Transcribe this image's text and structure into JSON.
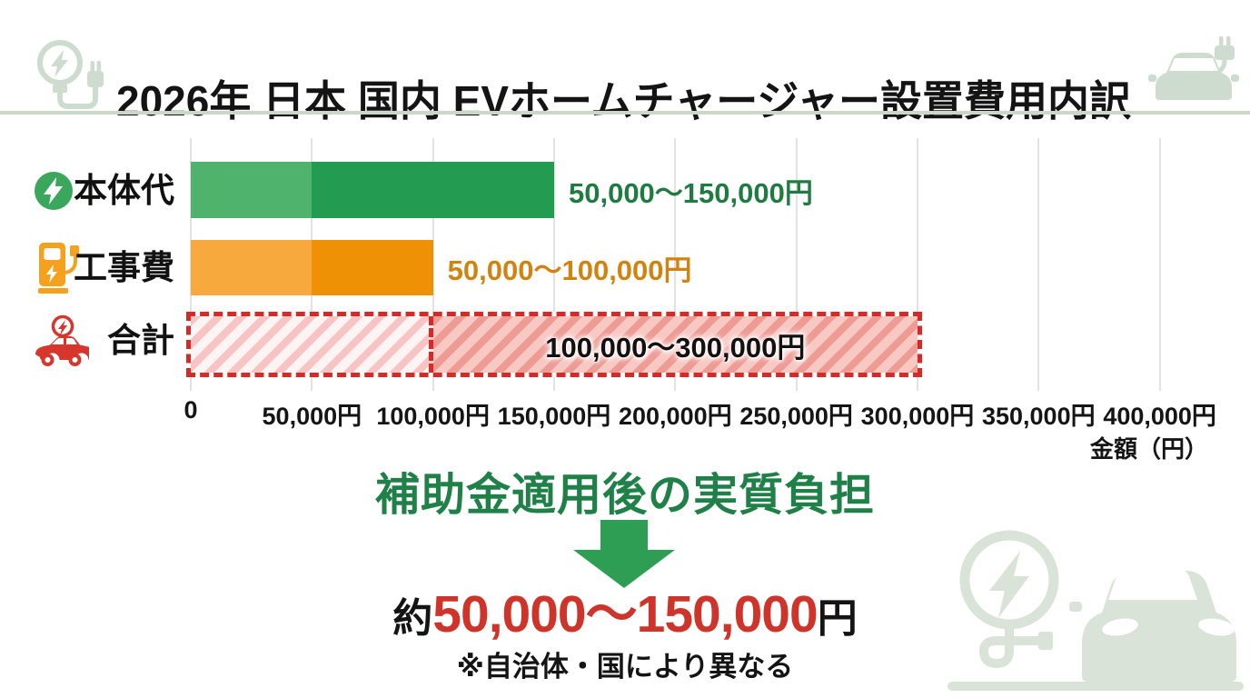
{
  "header": {
    "title": "2026年 日本 国内 EVホームチャージャー設置費用内訳"
  },
  "chart_data": {
    "type": "bar",
    "orientation": "horizontal",
    "title": "2026年 日本 国内 EVホームチャージャー設置費用内訳",
    "x_axis_label": "金額（円）",
    "xlim": [
      0,
      400000
    ],
    "grid": true,
    "x_ticks": [
      "0",
      "50,000円",
      "100,000円",
      "150,000円",
      "200,000円",
      "250,000円",
      "300,000円",
      "350,000円",
      "400,000円"
    ],
    "bars": [
      {
        "category": "本体代",
        "min": 0,
        "split": 50000,
        "max": 150000,
        "label": "50,000～150,000円",
        "icon": "lightning-circle-icon",
        "color_low": "#4fb26d",
        "color_high": "#239b51",
        "label_color": "#1e7c40"
      },
      {
        "category": "工事費",
        "min": 0,
        "split": 50000,
        "max": 100000,
        "label": "50,000～100,000円",
        "icon": "ev-charger-station-icon",
        "color_low": "#f8a93d",
        "color_high": "#ee9105",
        "label_color": "#d2830f"
      },
      {
        "category": "合計",
        "min": 0,
        "split": 100000,
        "max": 300000,
        "label": "100,000～300,000円",
        "icon": "ev-car-lightning-icon",
        "style": "hatched-dashed",
        "border_color": "#d42a28",
        "label_color": "#111111"
      }
    ]
  },
  "summary": {
    "heading": "補助金適用後の実質負担",
    "amount_prefix": "約",
    "amount_value": "50,000～150,000",
    "amount_suffix": "円",
    "note": "※自治体・国により異なる"
  },
  "icons": {
    "header_left": "ev-plug-bulb-icon",
    "header_right": "car-with-plug-icon",
    "decor_bottom_right": "ev-charging-car-illustration",
    "arrow": "down-arrow"
  },
  "colors": {
    "sage_header": "#cddcce",
    "sage_divider": "#c9d8c7",
    "sage_illustration": "#d9e3d8",
    "green_bar_light": "#4fb26d",
    "green_bar_dark": "#239b51",
    "green_text": "#1e7c40",
    "orange_bar_light": "#f8a93d",
    "orange_bar_dark": "#ee9105",
    "orange_text": "#d2830f",
    "red_dashed": "#d42a28",
    "pink_hatch_bg": "#f8c8c3",
    "heading_green": "#1f8148",
    "arrow_green": "#2f9e55",
    "amount_red": "#cf342b"
  }
}
